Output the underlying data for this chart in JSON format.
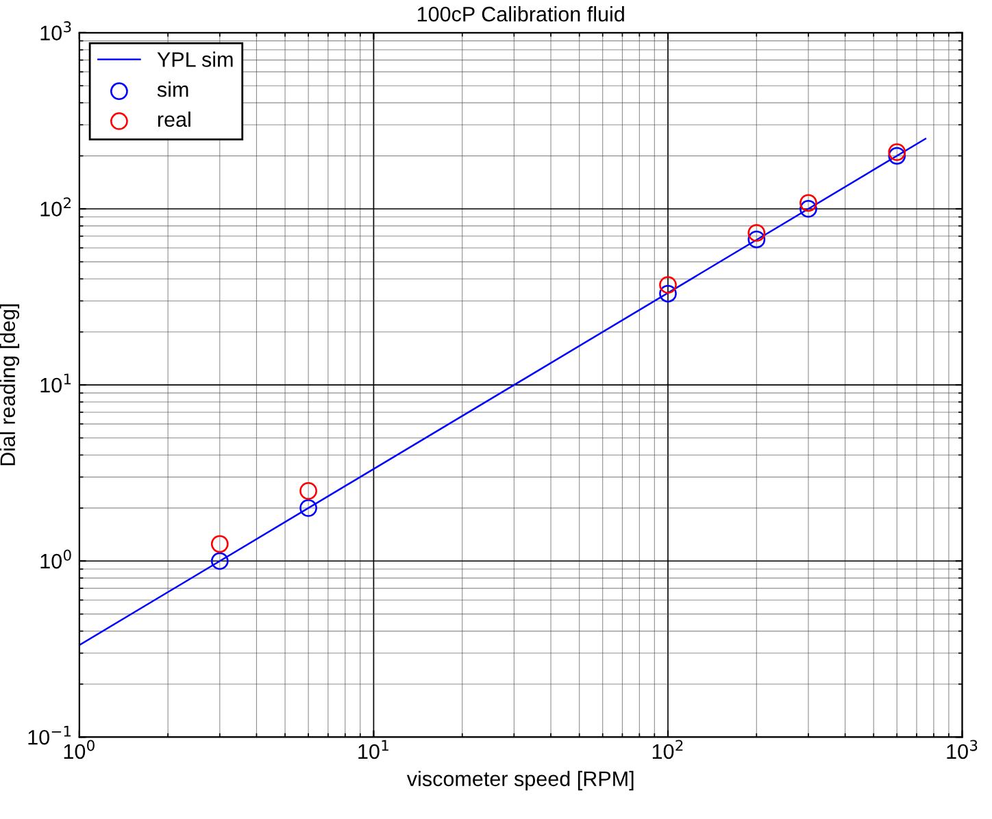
{
  "chart_data": {
    "type": "line",
    "title": "100cP Calibration fluid",
    "xlabel": "viscometer speed [RPM]",
    "ylabel": "Dial reading [deg]",
    "log": "xy",
    "grid": true,
    "legend": "top left",
    "xlim": [
      1,
      1000
    ],
    "ylim": [
      0.1,
      1000
    ],
    "xticks": [
      {
        "value": 1,
        "label": "10$^{0}$"
      },
      {
        "value": 10,
        "label": "10$^{1}$"
      },
      {
        "value": 100,
        "label": "10$^{2}$"
      },
      {
        "value": 1000,
        "label": "10$^{3}$"
      }
    ],
    "yticks": [
      {
        "value": 0.1,
        "label": "10$^{−1}$"
      },
      {
        "value": 1,
        "label": "10$^{0}$"
      },
      {
        "value": 10,
        "label": "10$^{1}$"
      },
      {
        "value": 100,
        "label": "10$^{2}$"
      },
      {
        "value": 1000,
        "label": "10$^{3}$"
      }
    ],
    "series": [
      {
        "name": "YPL sim",
        "color": "#0000ff",
        "marker": "none",
        "line_style": "solid",
        "x": [
          1,
          750
        ],
        "values": [
          0.333,
          250
        ]
      },
      {
        "name": "sim",
        "type": "scatter",
        "color": "#0000ff",
        "marker": "circle",
        "x": [
          3,
          6,
          100,
          200,
          300,
          600
        ],
        "values": [
          1.0,
          2.0,
          33,
          67,
          100,
          200
        ]
      },
      {
        "name": "real",
        "type": "scatter",
        "color": "#ff0000",
        "marker": "circle",
        "x": [
          3,
          6,
          100,
          200,
          300,
          600
        ],
        "values": [
          1.25,
          2.5,
          37,
          73,
          108,
          210
        ]
      }
    ]
  }
}
